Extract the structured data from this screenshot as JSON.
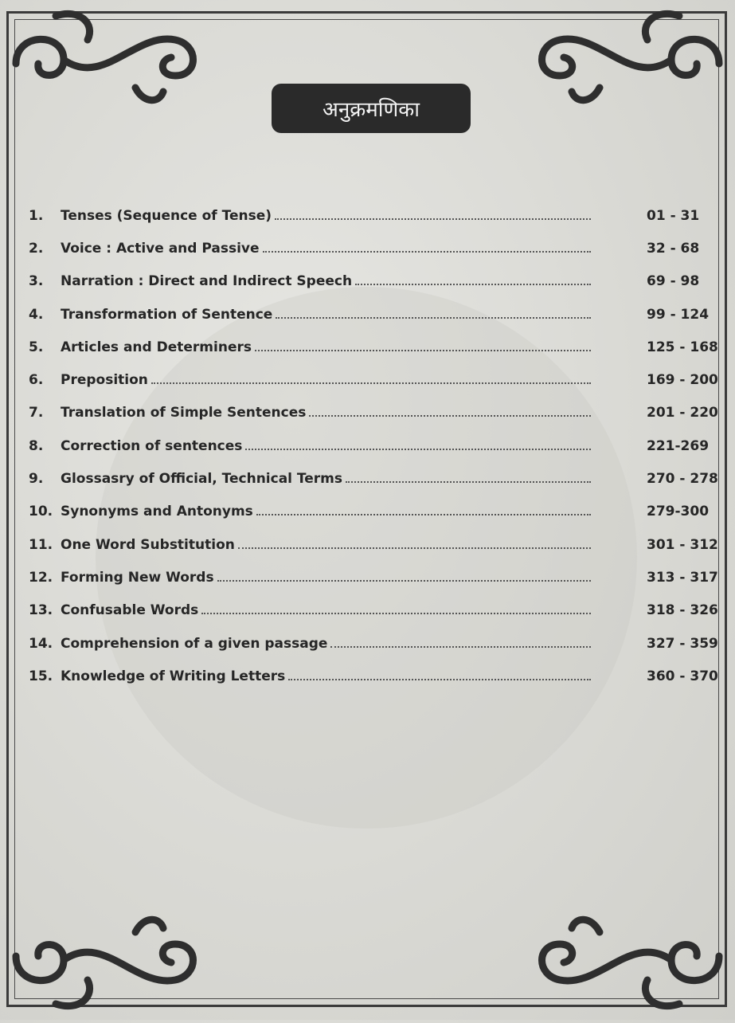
{
  "title": "अनुक्रमणिका",
  "colors": {
    "pill": "#2a2a2a",
    "page": "#d9d9d4",
    "frame": "#3a3a3a"
  },
  "entries": [
    {
      "num": "1.",
      "label": "Tenses (Sequence of Tense)",
      "pages": "01 - 31"
    },
    {
      "num": "2.",
      "label": "Voice : Active and Passive",
      "pages": "32 - 68"
    },
    {
      "num": "3.",
      "label": "Narration : Direct and Indirect Speech",
      "pages": "69 - 98"
    },
    {
      "num": "4.",
      "label": "Transformation of Sentence",
      "pages": "99 - 124"
    },
    {
      "num": "5.",
      "label": "Articles and Determiners",
      "pages": "125 - 168"
    },
    {
      "num": "6.",
      "label": "Preposition",
      "pages": "169 - 200"
    },
    {
      "num": "7.",
      "label": "Translation of Simple Sentences",
      "pages": "201 - 220"
    },
    {
      "num": "8.",
      "label": "Correction of sentences",
      "pages": "221-269"
    },
    {
      "num": "9.",
      "label": "Glossasry of Official, Technical Terms",
      "pages": "270 - 278"
    },
    {
      "num": "10.",
      "label": "Synonyms and Antonyms",
      "pages": "279-300"
    },
    {
      "num": "11.",
      "label": "One Word Substitution",
      "pages": "301 - 312"
    },
    {
      "num": "12.",
      "label": "Forming New Words",
      "pages": "313 - 317"
    },
    {
      "num": "13.",
      "label": "Confusable Words",
      "pages": "318 - 326"
    },
    {
      "num": "14.",
      "label": "Comprehension of a given passage",
      "pages": "327 - 359"
    },
    {
      "num": "15.",
      "label": "Knowledge of Writing Letters",
      "pages": "360 - 370"
    }
  ]
}
